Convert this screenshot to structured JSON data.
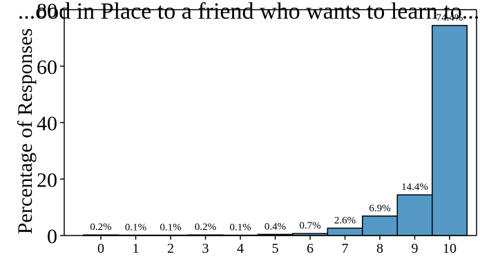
{
  "chart_data": {
    "type": "bar",
    "title": "...ood in Place to a friend who wants to learn to...",
    "xlabel": "",
    "ylabel": "Percentage of Responses",
    "categories": [
      "0",
      "1",
      "2",
      "3",
      "4",
      "5",
      "6",
      "7",
      "8",
      "9",
      "10"
    ],
    "values": [
      0.2,
      0.1,
      0.1,
      0.2,
      0.1,
      0.4,
      0.7,
      2.6,
      6.9,
      14.4,
      74.4
    ],
    "value_labels": [
      "0.2%",
      "0.1%",
      "0.1%",
      "0.2%",
      "0.1%",
      "0.4%",
      "0.7%",
      "2.6%",
      "6.9%",
      "14.4%",
      "74.4%"
    ],
    "yticks": [
      0,
      20,
      40,
      60,
      80
    ],
    "ylim": [
      0,
      80
    ],
    "grid": false,
    "legend": "none",
    "colors": {
      "bar_fill": "#5599c7",
      "bar_edge": "#000000",
      "axis": "#000000"
    }
  }
}
